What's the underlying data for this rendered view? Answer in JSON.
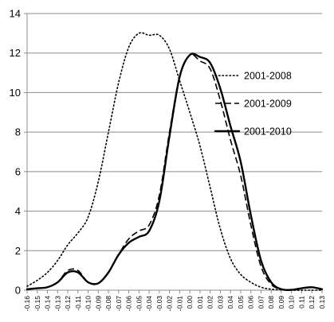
{
  "chart_data": {
    "type": "line",
    "title": "",
    "xlabel": "",
    "ylabel": "",
    "ylim": [
      0,
      14
    ],
    "y_ticks": [
      0,
      2,
      4,
      6,
      8,
      10,
      12,
      14
    ],
    "y_tick_labels": [
      "0",
      "2",
      "4",
      "6",
      "8",
      "10",
      "12",
      "14"
    ],
    "x_ticks": [
      -0.16,
      -0.15,
      -0.14,
      -0.13,
      -0.12,
      -0.11,
      -0.1,
      -0.09,
      -0.08,
      -0.07,
      -0.06,
      -0.05,
      -0.04,
      -0.03,
      -0.02,
      -0.01,
      0.0,
      0.01,
      0.02,
      0.03,
      0.04,
      0.05,
      0.06,
      0.07,
      0.08,
      0.09,
      0.1,
      0.11,
      0.12,
      0.13
    ],
    "x_tick_labels": [
      "-0.16",
      "-0.15",
      "-0.14",
      "-0.13",
      "-0.12",
      "-0.11",
      "-0.10",
      "-0.09",
      "-0.08",
      "-0.07",
      "-0.06",
      "-0.05",
      "-0.04",
      "-0.03",
      "-0.02",
      "-0.01",
      "0.00",
      "0.01",
      "0.02",
      "0.03",
      "0.04",
      "0.05",
      "0.06",
      "0.07",
      "0.08",
      "0.09",
      "0.10",
      "0.11",
      "0.12",
      "0.13"
    ],
    "grid": "horizontal",
    "legend_position": "right",
    "series": [
      {
        "name": "2001-2008",
        "style": "dotted",
        "x": [
          -0.16,
          -0.15,
          -0.14,
          -0.13,
          -0.12,
          -0.11,
          -0.1,
          -0.09,
          -0.08,
          -0.07,
          -0.06,
          -0.05,
          -0.04,
          -0.03,
          -0.02,
          -0.01,
          0.0,
          0.01,
          0.02,
          0.03,
          0.04,
          0.05,
          0.06,
          0.07,
          0.08,
          0.09,
          0.1,
          0.11,
          0.12,
          0.13
        ],
        "y": [
          0.2,
          0.5,
          0.9,
          1.5,
          2.3,
          2.9,
          3.7,
          5.5,
          8.0,
          10.5,
          12.3,
          13.0,
          12.9,
          12.9,
          12.2,
          10.6,
          9.0,
          7.3,
          5.2,
          3.1,
          1.6,
          0.8,
          0.4,
          0.15,
          0.05,
          0.02,
          0.0,
          0.0,
          0.0,
          0.0
        ]
      },
      {
        "name": "2001-2009",
        "style": "dashed",
        "x": [
          -0.16,
          -0.15,
          -0.14,
          -0.13,
          -0.12,
          -0.11,
          -0.1,
          -0.09,
          -0.08,
          -0.07,
          -0.06,
          -0.05,
          -0.04,
          -0.03,
          -0.02,
          -0.01,
          0.0,
          0.01,
          0.02,
          0.03,
          0.04,
          0.05,
          0.06,
          0.07,
          0.08,
          0.09,
          0.1,
          0.11,
          0.12,
          0.13
        ],
        "y": [
          0.05,
          0.1,
          0.15,
          0.4,
          1.0,
          1.0,
          0.4,
          0.35,
          0.9,
          1.8,
          2.6,
          3.0,
          3.3,
          4.8,
          8.0,
          10.8,
          11.9,
          11.6,
          11.2,
          9.6,
          7.6,
          5.8,
          3.3,
          1.2,
          0.3,
          0.05,
          0.02,
          0.1,
          0.15,
          0.05
        ]
      },
      {
        "name": "2001-2010",
        "style": "solid",
        "x": [
          -0.16,
          -0.15,
          -0.14,
          -0.13,
          -0.12,
          -0.11,
          -0.1,
          -0.09,
          -0.08,
          -0.07,
          -0.06,
          -0.05,
          -0.04,
          -0.03,
          -0.02,
          -0.01,
          0.0,
          0.01,
          0.02,
          0.03,
          0.04,
          0.05,
          0.06,
          0.07,
          0.08,
          0.09,
          0.1,
          0.11,
          0.12,
          0.13
        ],
        "y": [
          0.05,
          0.1,
          0.15,
          0.4,
          0.9,
          0.9,
          0.4,
          0.35,
          0.9,
          1.8,
          2.4,
          2.7,
          3.0,
          4.5,
          7.8,
          10.8,
          11.9,
          11.8,
          11.5,
          10.2,
          8.3,
          6.5,
          3.8,
          1.5,
          0.4,
          0.05,
          0.02,
          0.1,
          0.15,
          0.05
        ]
      }
    ]
  }
}
